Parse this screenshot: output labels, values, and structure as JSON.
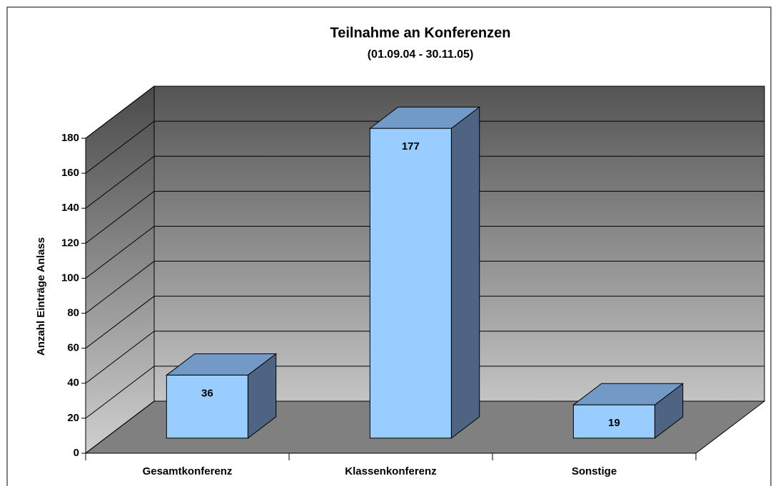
{
  "chart_data": {
    "type": "bar",
    "title": "Teilnahme an Konferenzen",
    "subtitle": "(01.09.04 - 30.11.05)",
    "y_label": "Anzahl Einträge Anlass",
    "categories": [
      "Gesamtkonferenz",
      "Klassenkonferenz",
      "Sonstige"
    ],
    "values": [
      36,
      177,
      19
    ],
    "color": "#99ccff",
    "ylim": [
      0,
      180
    ],
    "yticks": [
      0,
      20,
      40,
      60,
      80,
      100,
      120,
      140,
      160,
      180
    ],
    "grid": true
  }
}
